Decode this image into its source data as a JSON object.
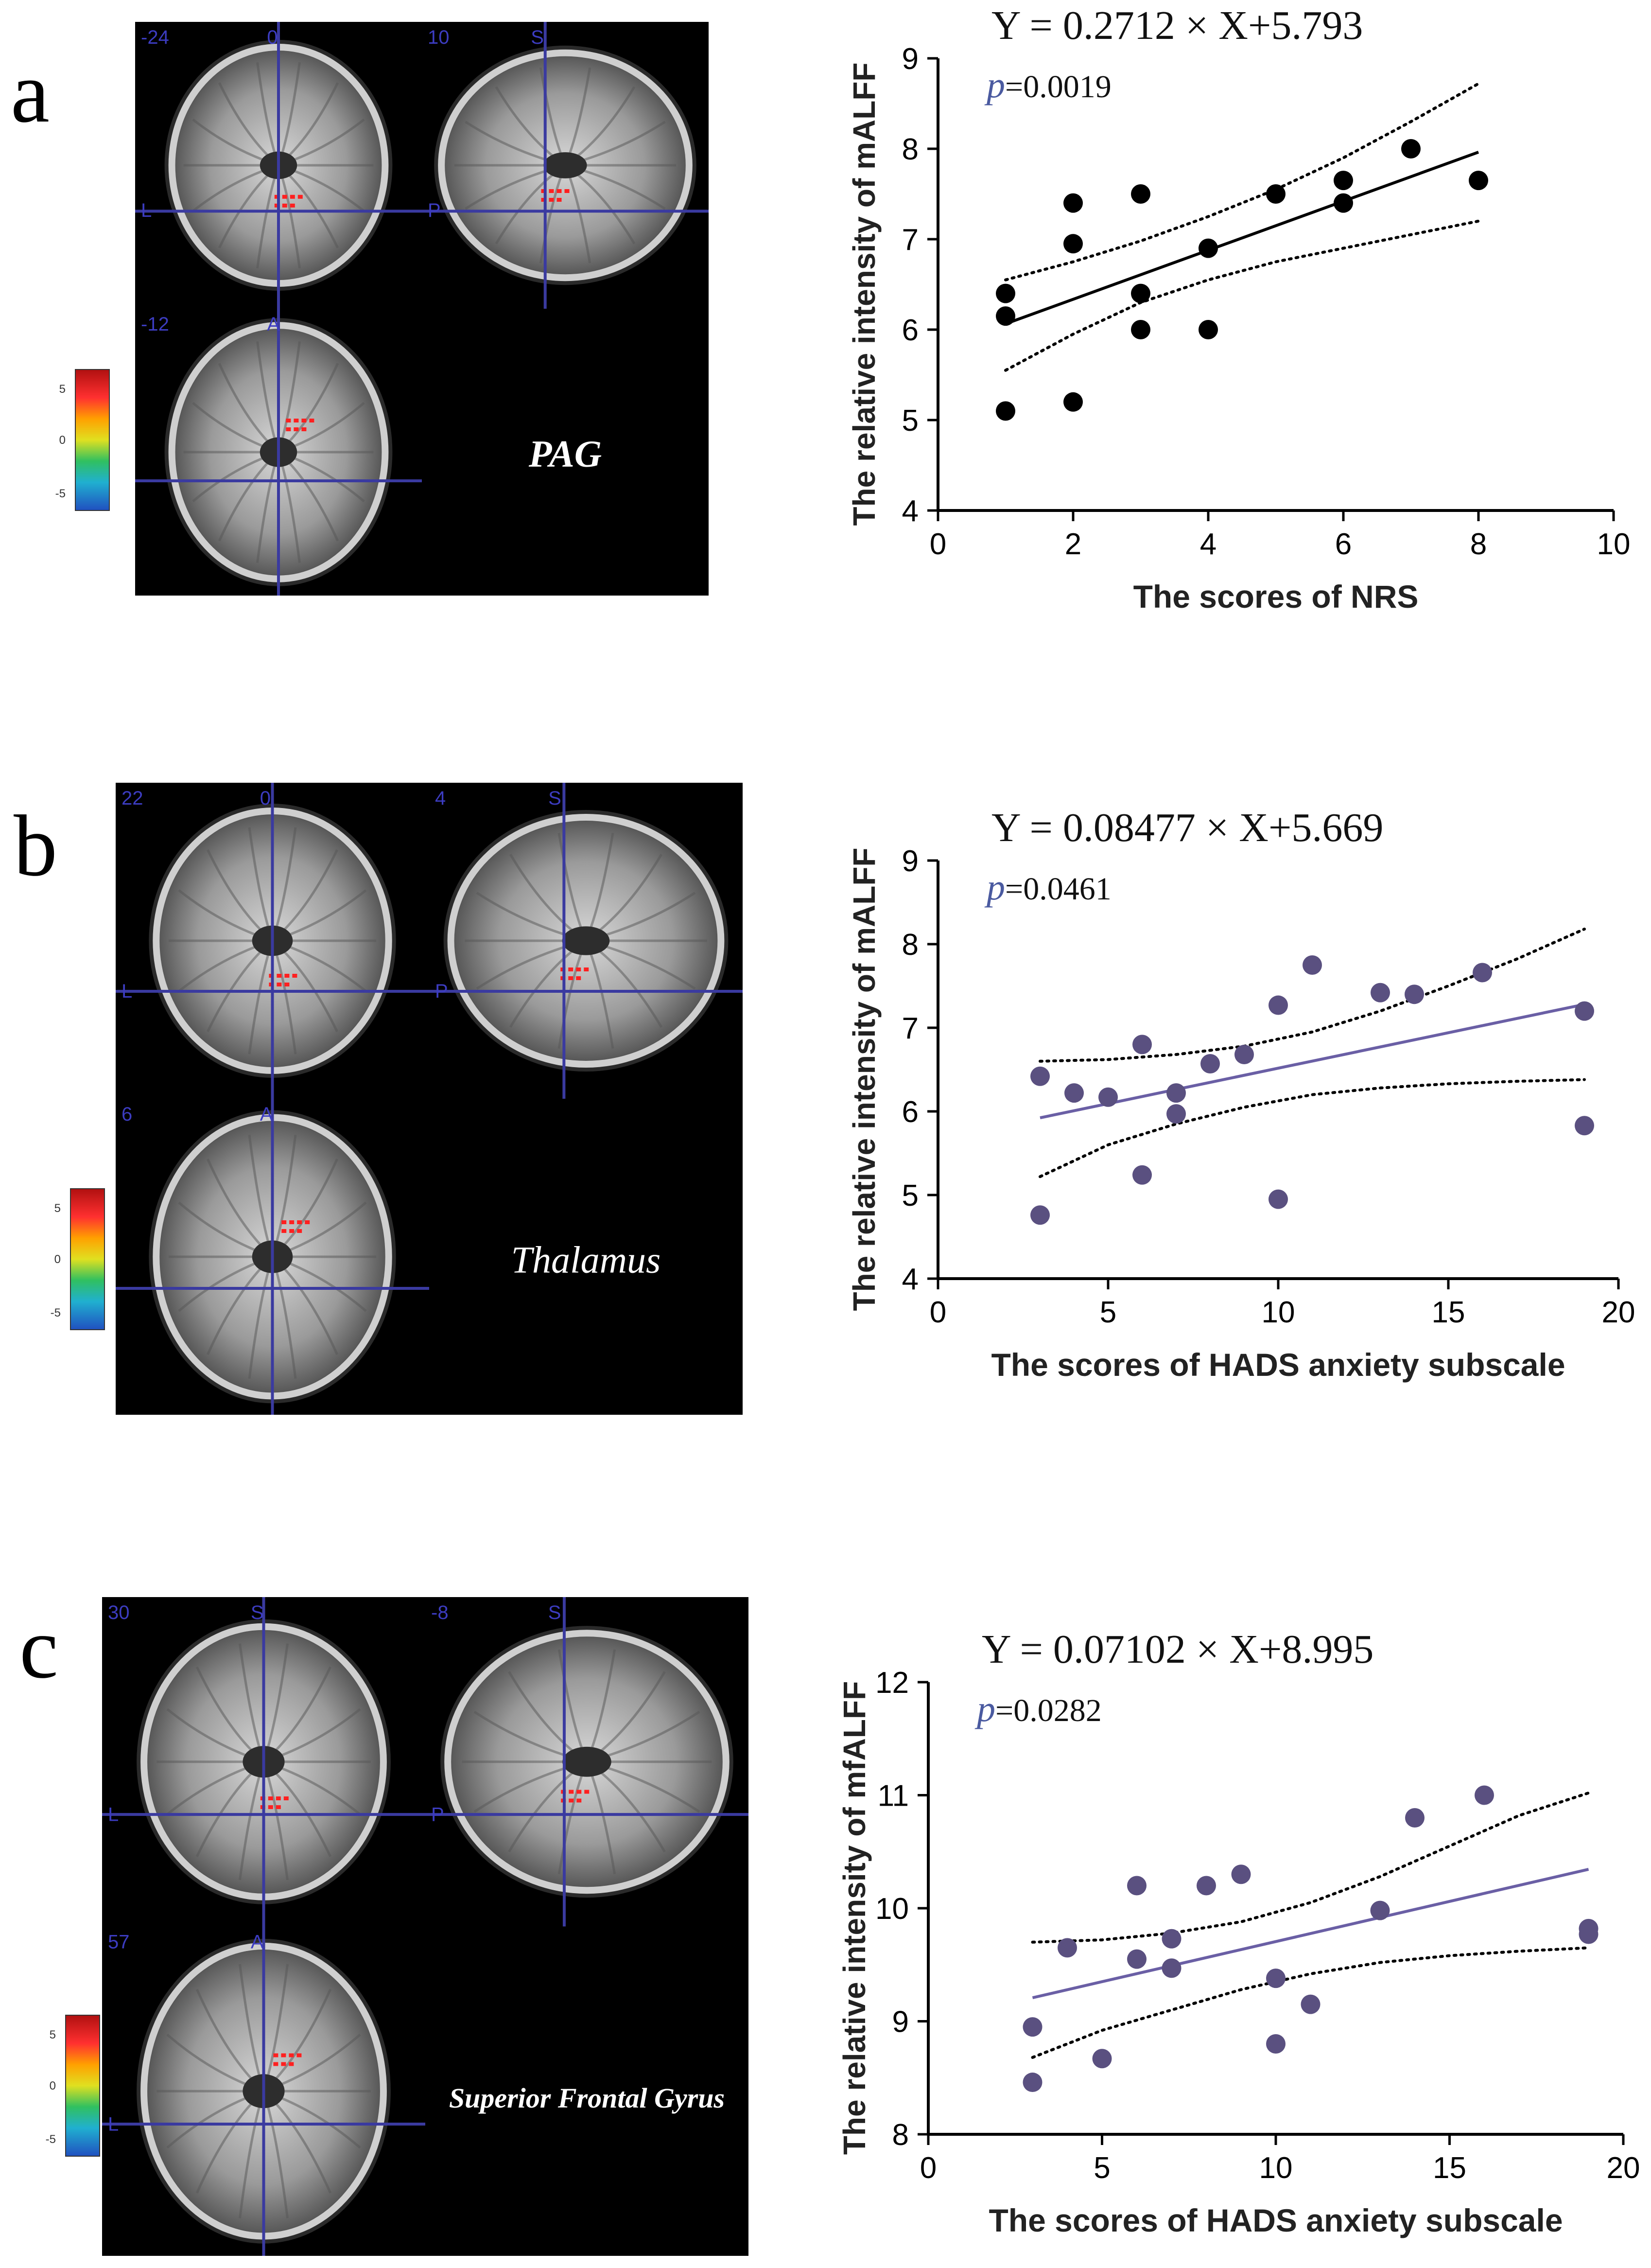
{
  "panels": [
    {
      "letter": "a",
      "brain": {
        "coords": [
          "-24",
          "0",
          "10",
          "S",
          "-12",
          "A"
        ],
        "view_letters": [
          "L",
          "P"
        ],
        "colorbar_ticks": [
          "5",
          "0",
          "-5"
        ],
        "region": "PAG",
        "region_style": "bold-italic"
      }
    },
    {
      "letter": "b",
      "brain": {
        "coords": [
          "22",
          "0",
          "4",
          "S",
          "6",
          "A"
        ],
        "view_letters": [
          "L",
          "P"
        ],
        "colorbar_ticks": [
          "5",
          "0",
          "-5"
        ],
        "region": "Thalamus",
        "region_style": "italic"
      }
    },
    {
      "letter": "c",
      "brain": {
        "coords": [
          "30",
          "S",
          "-8",
          "S",
          "57",
          "A"
        ],
        "view_letters": [
          "L",
          "P",
          "L"
        ],
        "colorbar_ticks": [
          "5",
          "0",
          "-5"
        ],
        "region": "Superior Frontal Gyrus",
        "region_style": "bold-italic"
      }
    }
  ],
  "chart_data": [
    {
      "type": "scatter",
      "equation": "Y = 0.2712 × X+5.793",
      "p_label": "p",
      "p_value": "=0.0019",
      "xlabel": "The scores of NRS",
      "ylabel": "The relative intensity of mALFF",
      "xlim": [
        0,
        10
      ],
      "ylim": [
        4,
        9
      ],
      "xticks": [
        0,
        2,
        4,
        6,
        8,
        10
      ],
      "yticks": [
        4,
        5,
        6,
        7,
        8,
        9
      ],
      "point_color": "#000000",
      "line_color": "#000000",
      "x": [
        1,
        1,
        1,
        2,
        2,
        2,
        3,
        3,
        3,
        4,
        4,
        5,
        6,
        6,
        7,
        8
      ],
      "y": [
        6.4,
        6.15,
        5.1,
        7.4,
        6.95,
        5.2,
        7.5,
        6.4,
        6.0,
        6.9,
        6.0,
        7.5,
        7.65,
        7.4,
        8.0,
        7.65
      ],
      "fit": {
        "slope": 0.2712,
        "intercept": 5.793,
        "x_range": [
          1,
          8
        ]
      },
      "ci_upper": [
        [
          1,
          6.55
        ],
        [
          2,
          6.75
        ],
        [
          3,
          6.98
        ],
        [
          4,
          7.25
        ],
        [
          5,
          7.55
        ],
        [
          6,
          7.9
        ],
        [
          7,
          8.3
        ],
        [
          8,
          8.72
        ]
      ],
      "ci_lower": [
        [
          1,
          5.55
        ],
        [
          2,
          5.95
        ],
        [
          3,
          6.3
        ],
        [
          4,
          6.55
        ],
        [
          5,
          6.75
        ],
        [
          6,
          6.9
        ],
        [
          7,
          7.05
        ],
        [
          8,
          7.2
        ]
      ]
    },
    {
      "type": "scatter",
      "equation": "Y = 0.08477 × X+5.669",
      "p_label": "p",
      "p_value": "=0.0461",
      "xlabel": "The scores of HADS anxiety subscale",
      "ylabel": "The relative intensity of mALFF",
      "xlim": [
        0,
        20
      ],
      "ylim": [
        4,
        9
      ],
      "xticks": [
        0,
        5,
        10,
        15,
        20
      ],
      "yticks": [
        4,
        5,
        6,
        7,
        8,
        9
      ],
      "point_color": "#5a5080",
      "line_color": "#6a5fa5",
      "x": [
        3,
        3,
        4,
        5,
        6,
        6,
        7,
        7,
        8,
        9,
        10,
        10,
        11,
        13,
        14,
        16,
        19,
        19
      ],
      "y": [
        6.42,
        4.76,
        6.22,
        6.17,
        6.8,
        5.24,
        6.22,
        5.97,
        6.57,
        6.68,
        7.27,
        4.95,
        7.75,
        7.42,
        7.4,
        7.66,
        7.2,
        5.83
      ],
      "fit": {
        "slope": 0.08477,
        "intercept": 5.669,
        "x_range": [
          3,
          19
        ]
      },
      "ci_upper": [
        [
          3,
          6.6
        ],
        [
          5,
          6.62
        ],
        [
          7,
          6.68
        ],
        [
          9,
          6.78
        ],
        [
          11,
          6.95
        ],
        [
          13,
          7.2
        ],
        [
          15,
          7.5
        ],
        [
          17,
          7.82
        ],
        [
          19,
          8.18
        ]
      ],
      "ci_lower": [
        [
          3,
          5.22
        ],
        [
          5,
          5.6
        ],
        [
          7,
          5.85
        ],
        [
          9,
          6.05
        ],
        [
          11,
          6.2
        ],
        [
          13,
          6.28
        ],
        [
          15,
          6.33
        ],
        [
          17,
          6.36
        ],
        [
          19,
          6.38
        ]
      ]
    },
    {
      "type": "scatter",
      "equation": "Y = 0.07102 × X+8.995",
      "p_label": "p",
      "p_value": "=0.0282",
      "xlabel": "The scores of HADS anxiety subscale",
      "ylabel": "The relative intensity of mfALFF",
      "xlim": [
        0,
        20
      ],
      "ylim": [
        8,
        12
      ],
      "xticks": [
        0,
        5,
        10,
        15,
        20
      ],
      "yticks": [
        8,
        9,
        10,
        11,
        12
      ],
      "point_color": "#5a5080",
      "line_color": "#6a5fa5",
      "x": [
        3,
        3,
        4,
        5,
        6,
        6,
        7,
        7,
        8,
        9,
        10,
        10,
        11,
        13,
        14,
        16,
        19,
        19
      ],
      "y": [
        8.95,
        8.46,
        9.65,
        8.67,
        10.2,
        9.55,
        9.73,
        9.47,
        10.2,
        10.3,
        9.38,
        8.8,
        9.15,
        9.98,
        10.8,
        11.0,
        9.82,
        9.77
      ],
      "fit": {
        "slope": 0.07102,
        "intercept": 8.995,
        "x_range": [
          3,
          19
        ]
      },
      "ci_upper": [
        [
          3,
          9.7
        ],
        [
          5,
          9.72
        ],
        [
          7,
          9.78
        ],
        [
          9,
          9.88
        ],
        [
          11,
          10.05
        ],
        [
          13,
          10.28
        ],
        [
          15,
          10.55
        ],
        [
          17,
          10.82
        ],
        [
          19,
          11.02
        ]
      ],
      "ci_lower": [
        [
          3,
          8.68
        ],
        [
          5,
          8.92
        ],
        [
          7,
          9.1
        ],
        [
          9,
          9.28
        ],
        [
          11,
          9.42
        ],
        [
          13,
          9.52
        ],
        [
          15,
          9.58
        ],
        [
          17,
          9.62
        ],
        [
          19,
          9.65
        ]
      ]
    }
  ]
}
